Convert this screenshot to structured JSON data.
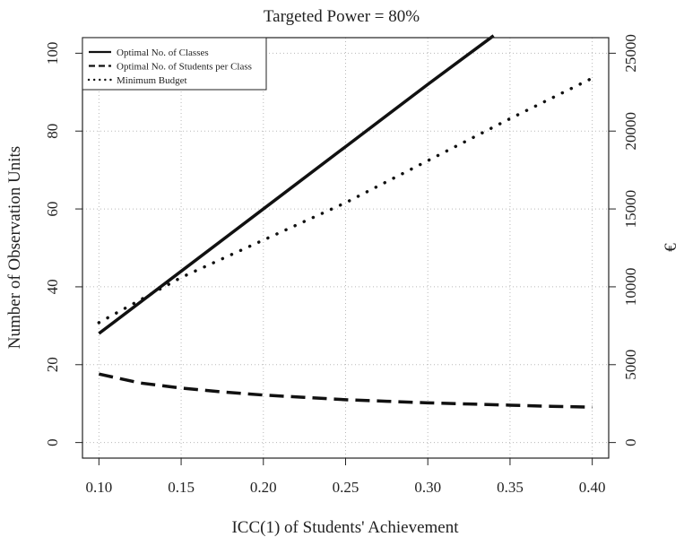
{
  "chart_data": {
    "type": "line",
    "title": "Targeted Power = 80%",
    "xlabel": "ICC(1) of Students' Achievement",
    "ylabel": "Number of Observation Units",
    "y2label": "€",
    "xlim": [
      0.09,
      0.41
    ],
    "ylim": [
      -4,
      104
    ],
    "y2lim": [
      -1000,
      26000
    ],
    "x_ticks": [
      "0.10",
      "0.15",
      "0.20",
      "0.25",
      "0.30",
      "0.35",
      "0.40"
    ],
    "y_ticks": [
      "0",
      "20",
      "40",
      "60",
      "80",
      "100"
    ],
    "y2_ticks": [
      "0",
      "5000",
      "10000",
      "15000",
      "20000",
      "25000"
    ],
    "grid": true,
    "legend_position": "top-left",
    "series": [
      {
        "name": "Optimal No. of Classes",
        "axis": "left",
        "style": "solid",
        "x": [
          0.1,
          0.15,
          0.2,
          0.25,
          0.3,
          0.34
        ],
        "values": [
          28,
          44,
          60,
          76,
          92,
          104.5
        ]
      },
      {
        "name": "Optimal No. of Students per Class",
        "axis": "left",
        "style": "dashed",
        "x": [
          0.1,
          0.125,
          0.15,
          0.175,
          0.2,
          0.225,
          0.25,
          0.275,
          0.3,
          0.325,
          0.35,
          0.375,
          0.4
        ],
        "values": [
          17.6,
          15.3,
          14.0,
          13.0,
          12.2,
          11.6,
          11.0,
          10.6,
          10.2,
          9.9,
          9.6,
          9.3,
          9.1
        ]
      },
      {
        "name": "Minimum Budget",
        "axis": "right",
        "style": "dotted",
        "x": [
          0.1,
          0.15,
          0.2,
          0.25,
          0.3,
          0.35,
          0.4
        ],
        "values": [
          7700,
          10600,
          13000,
          15400,
          18100,
          20800,
          23400
        ]
      }
    ]
  }
}
